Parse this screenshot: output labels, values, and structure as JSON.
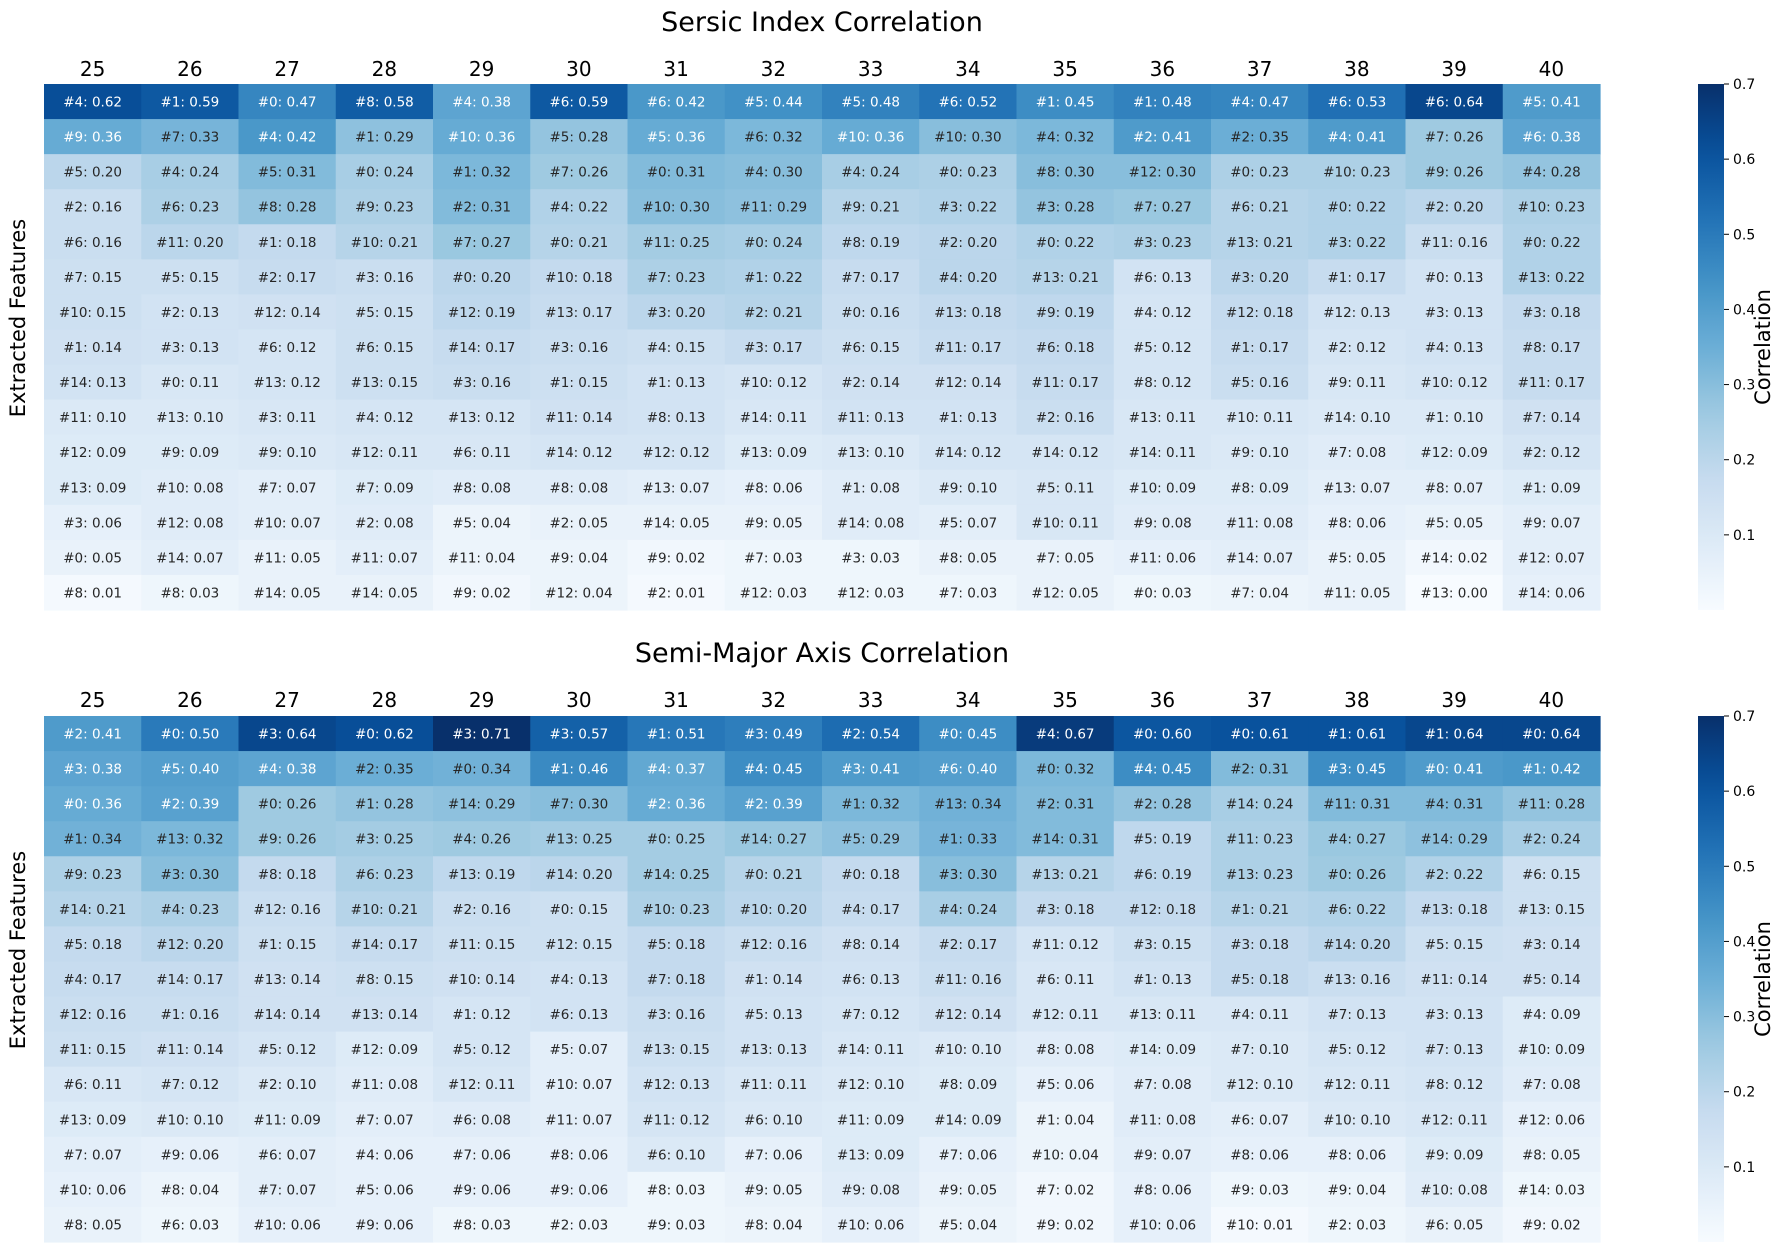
{
  "chart_data": [
    {
      "type": "heatmap",
      "title": "Sersic Index Correlation",
      "xlabel": "",
      "ylabel": "Extracted Features",
      "columns": [
        "25",
        "26",
        "27",
        "28",
        "29",
        "30",
        "31",
        "32",
        "33",
        "34",
        "35",
        "36",
        "37",
        "38",
        "39",
        "40"
      ],
      "colorbar": {
        "label": "Correlation",
        "range": [
          0.0,
          0.7
        ],
        "ticks": [
          "0.1",
          "0.2",
          "0.3",
          "0.4",
          "0.5",
          "0.6",
          "0.7"
        ],
        "colormap": "Blues"
      },
      "cells": [
        [
          "#4: 0.62",
          "#1: 0.59",
          "#0: 0.47",
          "#8: 0.58",
          "#4: 0.38",
          "#6: 0.59",
          "#6: 0.42",
          "#5: 0.44",
          "#5: 0.48",
          "#6: 0.52",
          "#1: 0.45",
          "#1: 0.48",
          "#4: 0.47",
          "#6: 0.53",
          "#6: 0.64",
          "#5: 0.41"
        ],
        [
          "#9: 0.36",
          "#7: 0.33",
          "#4: 0.42",
          "#1: 0.29",
          "#10: 0.36",
          "#5: 0.28",
          "#5: 0.36",
          "#6: 0.32",
          "#10: 0.36",
          "#10: 0.30",
          "#4: 0.32",
          "#2: 0.41",
          "#2: 0.35",
          "#4: 0.41",
          "#7: 0.26",
          "#6: 0.38"
        ],
        [
          "#5: 0.20",
          "#4: 0.24",
          "#5: 0.31",
          "#0: 0.24",
          "#1: 0.32",
          "#7: 0.26",
          "#0: 0.31",
          "#4: 0.30",
          "#4: 0.24",
          "#0: 0.23",
          "#8: 0.30",
          "#12: 0.30",
          "#0: 0.23",
          "#10: 0.23",
          "#9: 0.26",
          "#4: 0.28"
        ],
        [
          "#2: 0.16",
          "#6: 0.23",
          "#8: 0.28",
          "#9: 0.23",
          "#2: 0.31",
          "#4: 0.22",
          "#10: 0.30",
          "#11: 0.29",
          "#9: 0.21",
          "#3: 0.22",
          "#3: 0.28",
          "#7: 0.27",
          "#6: 0.21",
          "#0: 0.22",
          "#2: 0.20",
          "#10: 0.23"
        ],
        [
          "#6: 0.16",
          "#11: 0.20",
          "#1: 0.18",
          "#10: 0.21",
          "#7: 0.27",
          "#0: 0.21",
          "#11: 0.25",
          "#0: 0.24",
          "#8: 0.19",
          "#2: 0.20",
          "#0: 0.22",
          "#3: 0.23",
          "#13: 0.21",
          "#3: 0.22",
          "#11: 0.16",
          "#0: 0.22"
        ],
        [
          "#7: 0.15",
          "#5: 0.15",
          "#2: 0.17",
          "#3: 0.16",
          "#0: 0.20",
          "#10: 0.18",
          "#7: 0.23",
          "#1: 0.22",
          "#7: 0.17",
          "#4: 0.20",
          "#13: 0.21",
          "#6: 0.13",
          "#3: 0.20",
          "#1: 0.17",
          "#0: 0.13",
          "#13: 0.22"
        ],
        [
          "#10: 0.15",
          "#2: 0.13",
          "#12: 0.14",
          "#5: 0.15",
          "#12: 0.19",
          "#13: 0.17",
          "#3: 0.20",
          "#2: 0.21",
          "#0: 0.16",
          "#13: 0.18",
          "#9: 0.19",
          "#4: 0.12",
          "#12: 0.18",
          "#12: 0.13",
          "#3: 0.13",
          "#3: 0.18"
        ],
        [
          "#1: 0.14",
          "#3: 0.13",
          "#6: 0.12",
          "#6: 0.15",
          "#14: 0.17",
          "#3: 0.16",
          "#4: 0.15",
          "#3: 0.17",
          "#6: 0.15",
          "#11: 0.17",
          "#6: 0.18",
          "#5: 0.12",
          "#1: 0.17",
          "#2: 0.12",
          "#4: 0.13",
          "#8: 0.17"
        ],
        [
          "#14: 0.13",
          "#0: 0.11",
          "#13: 0.12",
          "#13: 0.15",
          "#3: 0.16",
          "#1: 0.15",
          "#1: 0.13",
          "#10: 0.12",
          "#2: 0.14",
          "#12: 0.14",
          "#11: 0.17",
          "#8: 0.12",
          "#5: 0.16",
          "#9: 0.11",
          "#10: 0.12",
          "#11: 0.17"
        ],
        [
          "#11: 0.10",
          "#13: 0.10",
          "#3: 0.11",
          "#4: 0.12",
          "#13: 0.12",
          "#11: 0.14",
          "#8: 0.13",
          "#14: 0.11",
          "#11: 0.13",
          "#1: 0.13",
          "#2: 0.16",
          "#13: 0.11",
          "#10: 0.11",
          "#14: 0.10",
          "#1: 0.10",
          "#7: 0.14"
        ],
        [
          "#12: 0.09",
          "#9: 0.09",
          "#9: 0.10",
          "#12: 0.11",
          "#6: 0.11",
          "#14: 0.12",
          "#12: 0.12",
          "#13: 0.09",
          "#13: 0.10",
          "#14: 0.12",
          "#14: 0.12",
          "#14: 0.11",
          "#9: 0.10",
          "#7: 0.08",
          "#12: 0.09",
          "#2: 0.12"
        ],
        [
          "#13: 0.09",
          "#10: 0.08",
          "#7: 0.07",
          "#7: 0.09",
          "#8: 0.08",
          "#8: 0.08",
          "#13: 0.07",
          "#8: 0.06",
          "#1: 0.08",
          "#9: 0.10",
          "#5: 0.11",
          "#10: 0.09",
          "#8: 0.09",
          "#13: 0.07",
          "#8: 0.07",
          "#1: 0.09"
        ],
        [
          "#3: 0.06",
          "#12: 0.08",
          "#10: 0.07",
          "#2: 0.08",
          "#5: 0.04",
          "#2: 0.05",
          "#14: 0.05",
          "#9: 0.05",
          "#14: 0.08",
          "#5: 0.07",
          "#10: 0.11",
          "#9: 0.08",
          "#11: 0.08",
          "#8: 0.06",
          "#5: 0.05",
          "#9: 0.07"
        ],
        [
          "#0: 0.05",
          "#14: 0.07",
          "#11: 0.05",
          "#11: 0.07",
          "#11: 0.04",
          "#9: 0.04",
          "#9: 0.02",
          "#7: 0.03",
          "#3: 0.03",
          "#8: 0.05",
          "#7: 0.05",
          "#11: 0.06",
          "#14: 0.07",
          "#5: 0.05",
          "#14: 0.02",
          "#12: 0.07"
        ],
        [
          "#8: 0.01",
          "#8: 0.03",
          "#14: 0.05",
          "#14: 0.05",
          "#9: 0.02",
          "#12: 0.04",
          "#2: 0.01",
          "#12: 0.03",
          "#12: 0.03",
          "#7: 0.03",
          "#12: 0.05",
          "#0: 0.03",
          "#7: 0.04",
          "#11: 0.05",
          "#13: 0.00",
          "#14: 0.06"
        ]
      ]
    },
    {
      "type": "heatmap",
      "title": "Semi-Major Axis Correlation",
      "xlabel": "",
      "ylabel": "Extracted Features",
      "columns": [
        "25",
        "26",
        "27",
        "28",
        "29",
        "30",
        "31",
        "32",
        "33",
        "34",
        "35",
        "36",
        "37",
        "38",
        "39",
        "40"
      ],
      "colorbar": {
        "label": "Correlation",
        "range": [
          0.0,
          0.7
        ],
        "ticks": [
          "0.1",
          "0.2",
          "0.3",
          "0.4",
          "0.5",
          "0.6",
          "0.7"
        ],
        "colormap": "Blues"
      },
      "cells": [
        [
          "#2: 0.41",
          "#0: 0.50",
          "#3: 0.64",
          "#0: 0.62",
          "#3: 0.71",
          "#3: 0.57",
          "#1: 0.51",
          "#3: 0.49",
          "#2: 0.54",
          "#0: 0.45",
          "#4: 0.67",
          "#0: 0.60",
          "#0: 0.61",
          "#1: 0.61",
          "#1: 0.64",
          "#0: 0.64"
        ],
        [
          "#3: 0.38",
          "#5: 0.40",
          "#4: 0.38",
          "#2: 0.35",
          "#0: 0.34",
          "#1: 0.46",
          "#4: 0.37",
          "#4: 0.45",
          "#3: 0.41",
          "#6: 0.40",
          "#0: 0.32",
          "#4: 0.45",
          "#2: 0.31",
          "#3: 0.45",
          "#0: 0.41",
          "#1: 0.42"
        ],
        [
          "#0: 0.36",
          "#2: 0.39",
          "#0: 0.26",
          "#1: 0.28",
          "#14: 0.29",
          "#7: 0.30",
          "#2: 0.36",
          "#2: 0.39",
          "#1: 0.32",
          "#13: 0.34",
          "#2: 0.31",
          "#2: 0.28",
          "#14: 0.24",
          "#11: 0.31",
          "#4: 0.31",
          "#11: 0.28"
        ],
        [
          "#1: 0.34",
          "#13: 0.32",
          "#9: 0.26",
          "#3: 0.25",
          "#4: 0.26",
          "#13: 0.25",
          "#0: 0.25",
          "#14: 0.27",
          "#5: 0.29",
          "#1: 0.33",
          "#14: 0.31",
          "#5: 0.19",
          "#11: 0.23",
          "#4: 0.27",
          "#14: 0.29",
          "#2: 0.24"
        ],
        [
          "#9: 0.23",
          "#3: 0.30",
          "#8: 0.18",
          "#6: 0.23",
          "#13: 0.19",
          "#14: 0.20",
          "#14: 0.25",
          "#0: 0.21",
          "#0: 0.18",
          "#3: 0.30",
          "#13: 0.21",
          "#6: 0.19",
          "#13: 0.23",
          "#0: 0.26",
          "#2: 0.22",
          "#6: 0.15"
        ],
        [
          "#14: 0.21",
          "#4: 0.23",
          "#12: 0.16",
          "#10: 0.21",
          "#2: 0.16",
          "#0: 0.15",
          "#10: 0.23",
          "#10: 0.20",
          "#4: 0.17",
          "#4: 0.24",
          "#3: 0.18",
          "#12: 0.18",
          "#1: 0.21",
          "#6: 0.22",
          "#13: 0.18",
          "#13: 0.15"
        ],
        [
          "#5: 0.18",
          "#12: 0.20",
          "#1: 0.15",
          "#14: 0.17",
          "#11: 0.15",
          "#12: 0.15",
          "#5: 0.18",
          "#12: 0.16",
          "#8: 0.14",
          "#2: 0.17",
          "#11: 0.12",
          "#3: 0.15",
          "#3: 0.18",
          "#14: 0.20",
          "#5: 0.15",
          "#3: 0.14"
        ],
        [
          "#4: 0.17",
          "#14: 0.17",
          "#13: 0.14",
          "#8: 0.15",
          "#10: 0.14",
          "#4: 0.13",
          "#7: 0.18",
          "#1: 0.14",
          "#6: 0.13",
          "#11: 0.16",
          "#6: 0.11",
          "#1: 0.13",
          "#5: 0.18",
          "#13: 0.16",
          "#11: 0.14",
          "#5: 0.14"
        ],
        [
          "#12: 0.16",
          "#1: 0.16",
          "#14: 0.14",
          "#13: 0.14",
          "#1: 0.12",
          "#6: 0.13",
          "#3: 0.16",
          "#5: 0.13",
          "#7: 0.12",
          "#12: 0.14",
          "#12: 0.11",
          "#13: 0.11",
          "#4: 0.11",
          "#7: 0.13",
          "#3: 0.13",
          "#4: 0.09"
        ],
        [
          "#11: 0.15",
          "#11: 0.14",
          "#5: 0.12",
          "#12: 0.09",
          "#5: 0.12",
          "#5: 0.07",
          "#13: 0.15",
          "#13: 0.13",
          "#14: 0.11",
          "#10: 0.10",
          "#8: 0.08",
          "#14: 0.09",
          "#7: 0.10",
          "#5: 0.12",
          "#7: 0.13",
          "#10: 0.09"
        ],
        [
          "#6: 0.11",
          "#7: 0.12",
          "#2: 0.10",
          "#11: 0.08",
          "#12: 0.11",
          "#10: 0.07",
          "#12: 0.13",
          "#11: 0.11",
          "#12: 0.10",
          "#8: 0.09",
          "#5: 0.06",
          "#7: 0.08",
          "#12: 0.10",
          "#12: 0.11",
          "#8: 0.12",
          "#7: 0.08"
        ],
        [
          "#13: 0.09",
          "#10: 0.10",
          "#11: 0.09",
          "#7: 0.07",
          "#6: 0.08",
          "#11: 0.07",
          "#11: 0.12",
          "#6: 0.10",
          "#11: 0.09",
          "#14: 0.09",
          "#1: 0.04",
          "#11: 0.08",
          "#6: 0.07",
          "#10: 0.10",
          "#12: 0.11",
          "#12: 0.06"
        ],
        [
          "#7: 0.07",
          "#9: 0.06",
          "#6: 0.07",
          "#4: 0.06",
          "#7: 0.06",
          "#8: 0.06",
          "#6: 0.10",
          "#7: 0.06",
          "#13: 0.09",
          "#7: 0.06",
          "#10: 0.04",
          "#9: 0.07",
          "#8: 0.06",
          "#8: 0.06",
          "#9: 0.09",
          "#8: 0.05"
        ],
        [
          "#10: 0.06",
          "#8: 0.04",
          "#7: 0.07",
          "#5: 0.06",
          "#9: 0.06",
          "#9: 0.06",
          "#8: 0.03",
          "#9: 0.05",
          "#9: 0.08",
          "#9: 0.05",
          "#7: 0.02",
          "#8: 0.06",
          "#9: 0.03",
          "#9: 0.04",
          "#10: 0.08",
          "#14: 0.03"
        ],
        [
          "#8: 0.05",
          "#6: 0.03",
          "#10: 0.06",
          "#9: 0.06",
          "#8: 0.03",
          "#2: 0.03",
          "#9: 0.03",
          "#8: 0.04",
          "#10: 0.06",
          "#5: 0.04",
          "#9: 0.02",
          "#10: 0.06",
          "#10: 0.01",
          "#2: 0.03",
          "#6: 0.05",
          "#9: 0.02"
        ]
      ]
    }
  ]
}
